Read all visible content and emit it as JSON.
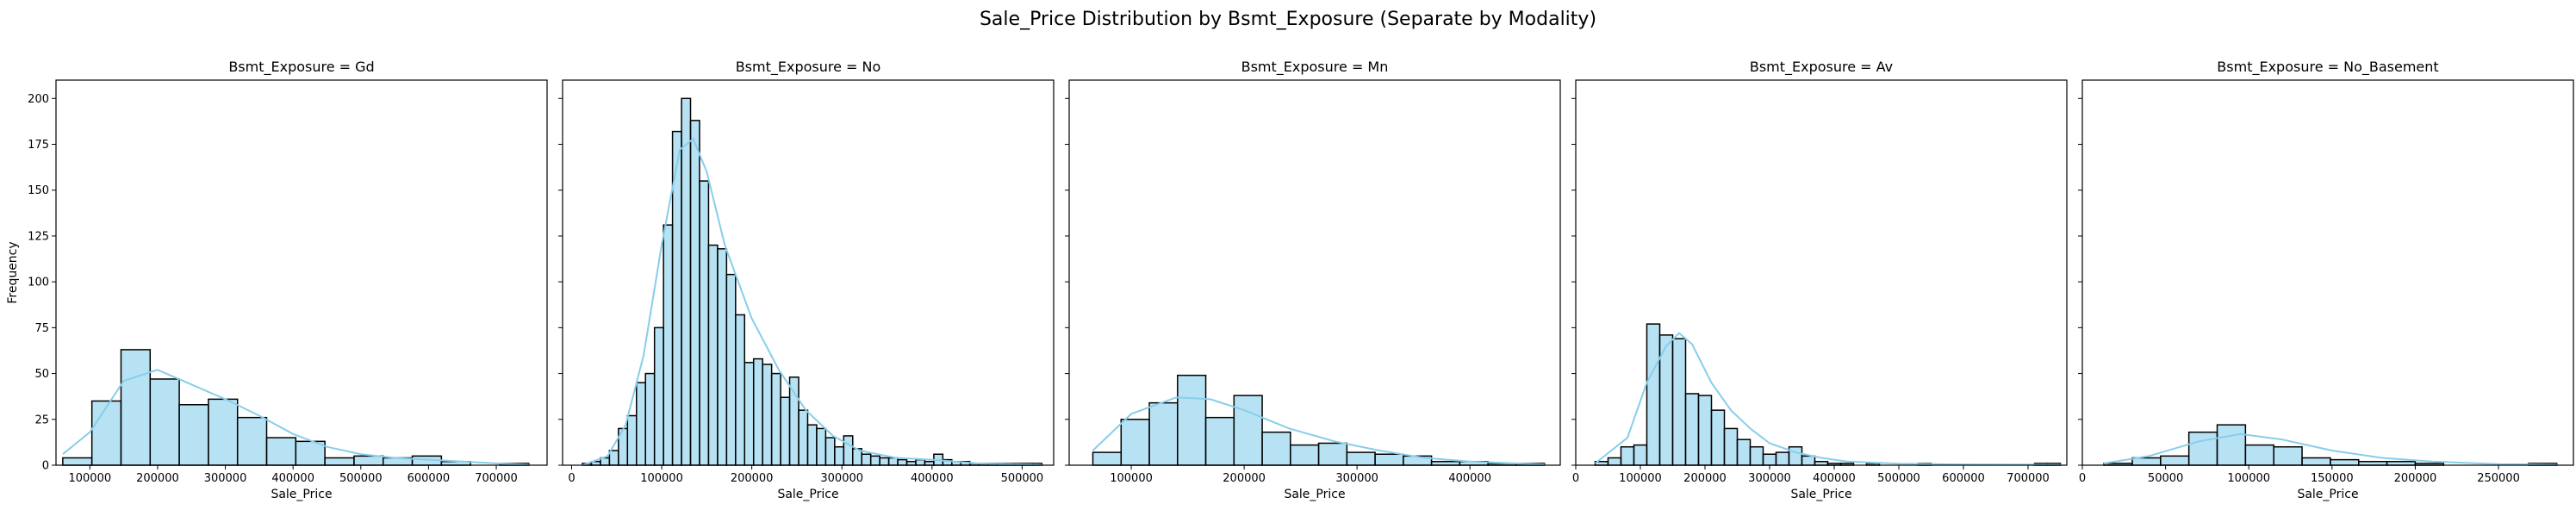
{
  "figure_title": "Sale_Price Distribution by Bsmt_Exposure (Separate by Modality)",
  "chart_data": [
    {
      "type": "bar",
      "title": "Bsmt_Exposure = Gd",
      "xlabel": "Sale_Price",
      "ylabel": "Frequency",
      "xlim": [
        50000,
        775000
      ],
      "ylim": [
        0,
        210
      ],
      "xticks": [
        100000,
        200000,
        300000,
        400000,
        500000,
        600000,
        700000
      ],
      "yticks": [
        0,
        25,
        50,
        75,
        100,
        125,
        150,
        175,
        200
      ],
      "bin_edges": [
        60000,
        103000,
        146000,
        189000,
        232000,
        275000,
        318000,
        361000,
        404000,
        447000,
        490000,
        533000,
        576000,
        619000,
        662000,
        705000,
        748000
      ],
      "counts": [
        4,
        35,
        63,
        47,
        33,
        36,
        26,
        15,
        13,
        4,
        5,
        4,
        5,
        2,
        0,
        1
      ],
      "kde": [
        [
          60000,
          6
        ],
        [
          100000,
          18
        ],
        [
          150000,
          46
        ],
        [
          200000,
          52
        ],
        [
          250000,
          44
        ],
        [
          300000,
          36
        ],
        [
          350000,
          27
        ],
        [
          400000,
          17
        ],
        [
          450000,
          10
        ],
        [
          500000,
          6
        ],
        [
          550000,
          4
        ],
        [
          600000,
          3
        ],
        [
          650000,
          2
        ],
        [
          700000,
          1
        ],
        [
          748000,
          0.3
        ]
      ]
    },
    {
      "type": "bar",
      "title": "Bsmt_Exposure = No",
      "xlabel": "Sale_Price",
      "ylabel": "",
      "xlim": [
        -10000,
        535000
      ],
      "ylim": [
        0,
        210
      ],
      "xticks": [
        0,
        100000,
        200000,
        300000,
        400000,
        500000
      ],
      "yticks": [
        0,
        25,
        50,
        75,
        100,
        125,
        150,
        175,
        200
      ],
      "bin_edges": [
        12000,
        22000,
        32000,
        42000,
        52000,
        62000,
        72000,
        82000,
        92000,
        102000,
        112000,
        122000,
        132000,
        142000,
        152000,
        162000,
        172000,
        182000,
        192000,
        202000,
        212000,
        222000,
        232000,
        242000,
        252000,
        262000,
        272000,
        282000,
        292000,
        302000,
        312000,
        322000,
        332000,
        342000,
        352000,
        362000,
        372000,
        382000,
        392000,
        402000,
        412000,
        422000,
        432000,
        442000,
        452000,
        462000,
        472000,
        482000,
        492000,
        502000,
        512000,
        522000
      ],
      "counts": [
        1,
        2,
        4,
        8,
        20,
        27,
        45,
        50,
        75,
        131,
        182,
        200,
        188,
        155,
        120,
        118,
        104,
        82,
        56,
        58,
        55,
        50,
        37,
        48,
        30,
        22,
        20,
        15,
        10,
        16,
        9,
        6,
        5,
        4,
        4,
        3,
        2,
        3,
        2,
        6,
        3,
        2,
        2,
        1,
        1,
        1,
        1,
        1,
        1,
        1,
        1
      ],
      "kde": [
        [
          12000,
          0
        ],
        [
          40000,
          5
        ],
        [
          60000,
          22
        ],
        [
          80000,
          60
        ],
        [
          100000,
          120
        ],
        [
          120000,
          172
        ],
        [
          135000,
          178
        ],
        [
          150000,
          160
        ],
        [
          170000,
          120
        ],
        [
          200000,
          80
        ],
        [
          230000,
          52
        ],
        [
          260000,
          30
        ],
        [
          290000,
          16
        ],
        [
          320000,
          8
        ],
        [
          360000,
          4
        ],
        [
          400000,
          3
        ],
        [
          450000,
          1
        ],
        [
          522000,
          0.3
        ]
      ]
    },
    {
      "type": "bar",
      "title": "Bsmt_Exposure = Mn",
      "xlabel": "Sale_Price",
      "ylabel": "",
      "xlim": [
        45000,
        480000
      ],
      "ylim": [
        0,
        210
      ],
      "xticks": [
        100000,
        200000,
        300000,
        400000
      ],
      "yticks": [
        0,
        25,
        50,
        75,
        100,
        125,
        150,
        175,
        200
      ],
      "bin_edges": [
        66000,
        91000,
        116000,
        141000,
        166000,
        191000,
        216000,
        241000,
        266000,
        291000,
        316000,
        341000,
        366000,
        391000,
        416000,
        441000,
        466000
      ],
      "counts": [
        7,
        25,
        34,
        49,
        26,
        38,
        18,
        11,
        12,
        7,
        6,
        5,
        2,
        2,
        1,
        1
      ],
      "kde": [
        [
          66000,
          8
        ],
        [
          100000,
          28
        ],
        [
          140000,
          37
        ],
        [
          170000,
          36
        ],
        [
          200000,
          30
        ],
        [
          240000,
          20
        ],
        [
          280000,
          13
        ],
        [
          320000,
          8
        ],
        [
          360000,
          4
        ],
        [
          400000,
          2
        ],
        [
          440000,
          1
        ],
        [
          466000,
          0.4
        ]
      ]
    },
    {
      "type": "bar",
      "title": "Bsmt_Exposure = Av",
      "xlabel": "Sale_Price",
      "ylabel": "",
      "xlim": [
        0,
        760000
      ],
      "ylim": [
        0,
        210
      ],
      "xticks": [
        0,
        100000,
        200000,
        300000,
        400000,
        500000,
        600000,
        700000
      ],
      "yticks": [
        0,
        25,
        50,
        75,
        100,
        125,
        150,
        175,
        200
      ],
      "bin_edges": [
        30000,
        50000,
        70000,
        90000,
        110000,
        130000,
        150000,
        170000,
        190000,
        210000,
        230000,
        250000,
        270000,
        290000,
        310000,
        330000,
        350000,
        370000,
        390000,
        410000,
        430000,
        450000,
        470000,
        490000,
        510000,
        530000,
        550000,
        570000,
        590000,
        610000,
        630000,
        650000,
        670000,
        690000,
        710000,
        730000,
        750000
      ],
      "counts": [
        2,
        4,
        10,
        11,
        77,
        71,
        69,
        39,
        38,
        30,
        20,
        14,
        10,
        6,
        7,
        10,
        5,
        2,
        1,
        1,
        0,
        1,
        0,
        0,
        0,
        1,
        0,
        0,
        0,
        0,
        0,
        0,
        0,
        0,
        1,
        1
      ],
      "kde": [
        [
          30000,
          1
        ],
        [
          80000,
          15
        ],
        [
          110000,
          45
        ],
        [
          140000,
          65
        ],
        [
          160000,
          72
        ],
        [
          180000,
          66
        ],
        [
          210000,
          45
        ],
        [
          240000,
          30
        ],
        [
          270000,
          20
        ],
        [
          300000,
          12
        ],
        [
          340000,
          7
        ],
        [
          380000,
          4
        ],
        [
          420000,
          2
        ],
        [
          500000,
          0.8
        ],
        [
          600000,
          0.4
        ],
        [
          750000,
          0.3
        ]
      ]
    },
    {
      "type": "bar",
      "title": "Bsmt_Exposure = No_Basement",
      "xlabel": "Sale_Price",
      "ylabel": "",
      "xlim": [
        0,
        295000
      ],
      "ylim": [
        0,
        210
      ],
      "xticks": [
        0,
        50000,
        100000,
        150000,
        200000,
        250000
      ],
      "yticks": [
        0,
        25,
        50,
        75,
        100,
        125,
        150,
        175,
        200
      ],
      "bin_edges": [
        13000,
        30000,
        47000,
        64000,
        81000,
        98000,
        115000,
        132000,
        149000,
        166000,
        183000,
        200000,
        217000,
        234000,
        251000,
        268000,
        285000
      ],
      "counts": [
        1,
        4,
        5,
        18,
        22,
        11,
        10,
        4,
        3,
        2,
        2,
        1,
        0,
        0,
        0,
        1
      ],
      "kde": [
        [
          13000,
          1
        ],
        [
          40000,
          5
        ],
        [
          70000,
          13
        ],
        [
          95000,
          17
        ],
        [
          120000,
          14
        ],
        [
          150000,
          8
        ],
        [
          180000,
          4
        ],
        [
          210000,
          2
        ],
        [
          250000,
          0.6
        ],
        [
          285000,
          0.3
        ]
      ]
    }
  ]
}
